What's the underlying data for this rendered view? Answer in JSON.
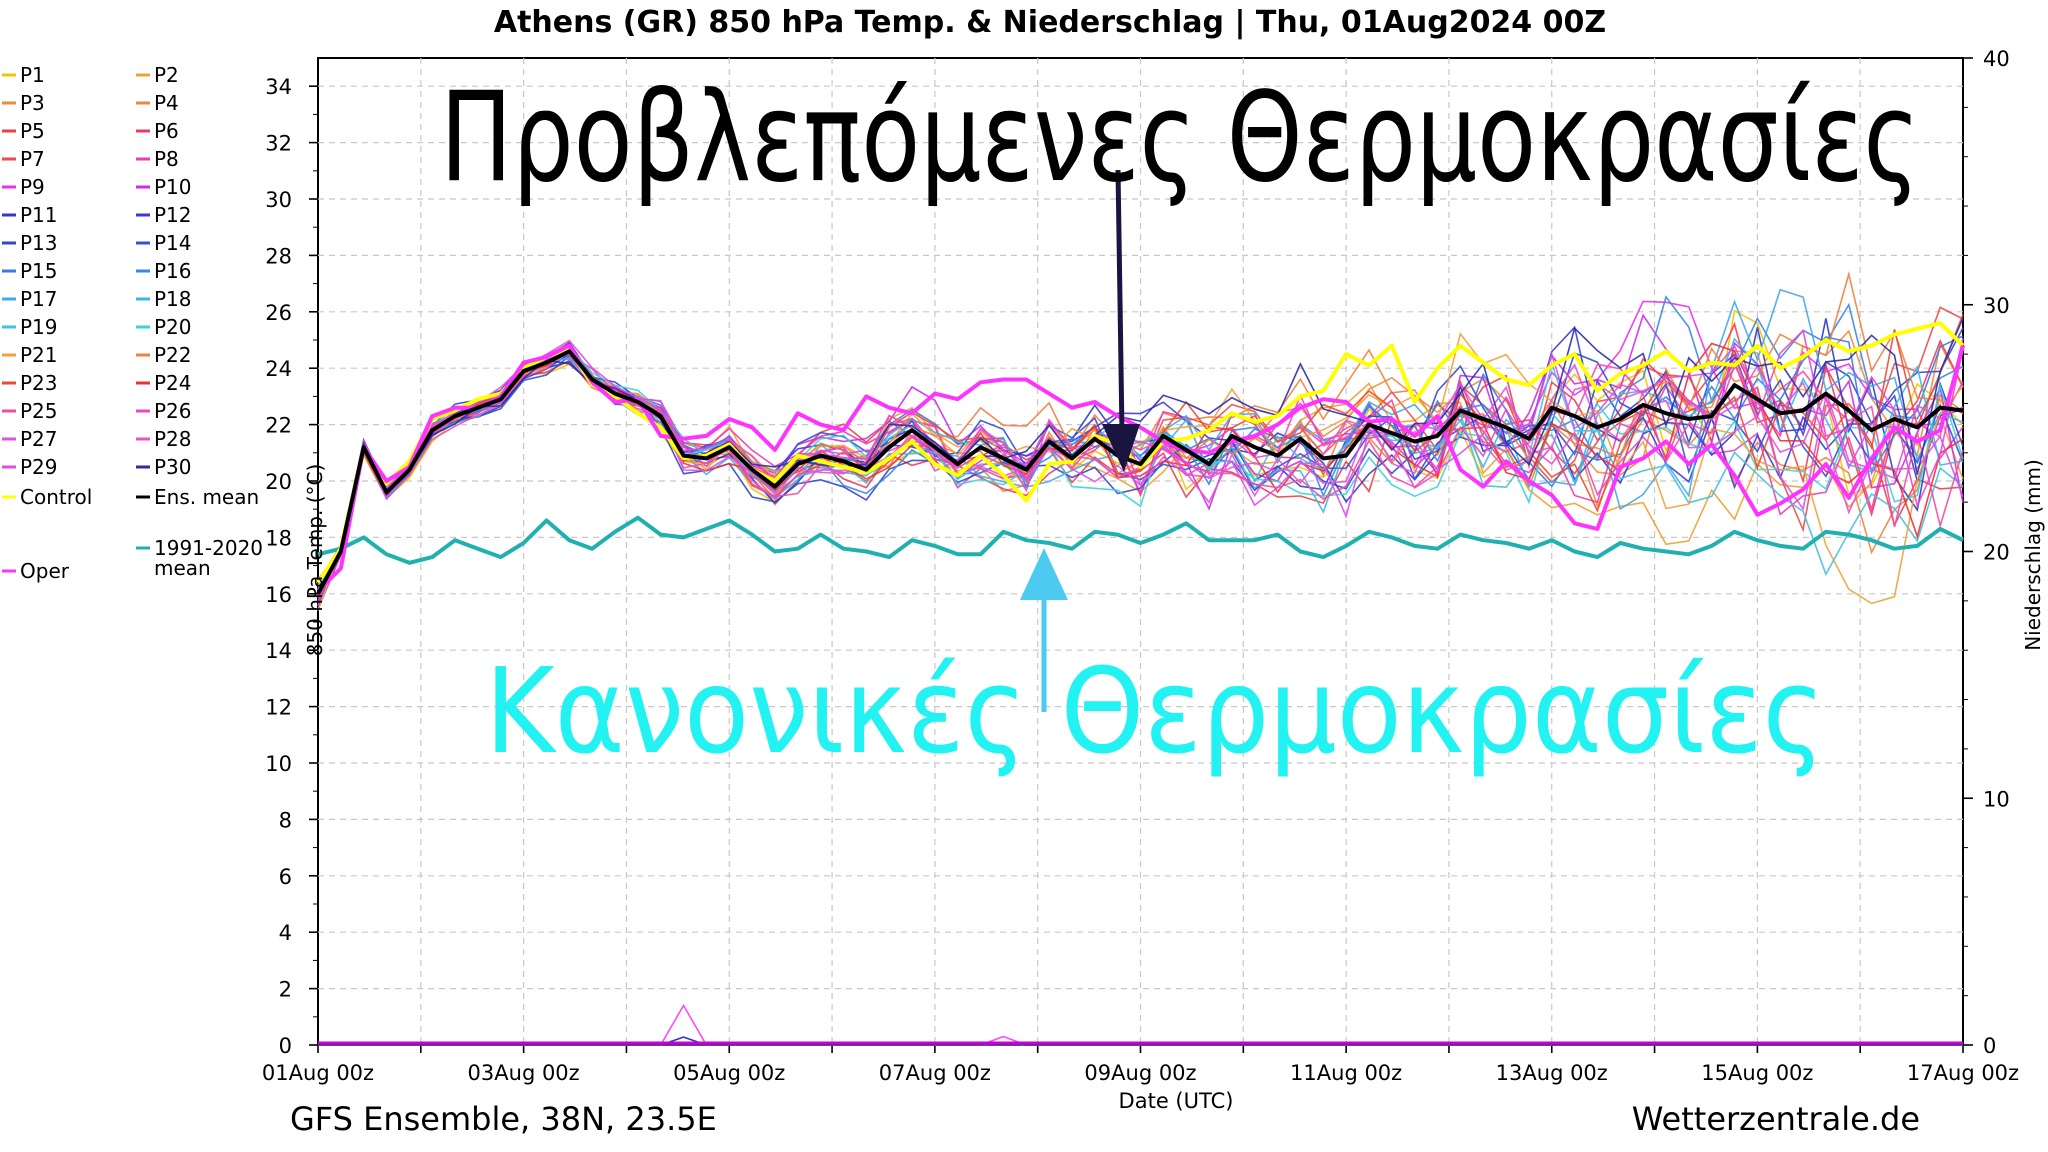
{
  "chart_data": {
    "type": "line",
    "title": "Athens  (GR)  850 hPa Temp. & Niederschlag | Thu, 01Aug2024 00Z",
    "xlabel": "Date (UTC)",
    "ylabel": "850 hPa Temp. (°C)",
    "y2label": "Niederschlag (mm)",
    "xticks": [
      "01Aug 00z",
      "03Aug 00z",
      "05Aug 00z",
      "07Aug 00z",
      "09Aug 00z",
      "11Aug 00z",
      "13Aug 00z",
      "15Aug 00z",
      "17Aug 00z"
    ],
    "x_start": "2024-08-01T00Z",
    "x_end": "2024-08-17T00Z",
    "x_step_hours": 6,
    "ylim": [
      0,
      35
    ],
    "yticks": [
      0,
      2,
      4,
      6,
      8,
      10,
      12,
      14,
      16,
      18,
      20,
      22,
      24,
      26,
      28,
      30,
      32,
      34
    ],
    "y2lim": [
      0,
      40
    ],
    "y2ticks": [
      0,
      10,
      20,
      30,
      40
    ],
    "grid": true,
    "legend_position": "left",
    "legend": [
      "P1",
      "P2",
      "P3",
      "P4",
      "P5",
      "P6",
      "P7",
      "P8",
      "P9",
      "P10",
      "P11",
      "P12",
      "P13",
      "P14",
      "P15",
      "P16",
      "P17",
      "P18",
      "P19",
      "P20",
      "P21",
      "P22",
      "P23",
      "P24",
      "P25",
      "P26",
      "P27",
      "P28",
      "P29",
      "P30",
      "Control",
      "Ens. mean",
      "1991-2020\nmean",
      "Oper"
    ],
    "member_colors": [
      "#f5c400",
      "#f0a030",
      "#f08a3c",
      "#f0843a",
      "#ee4040",
      "#ef3b5a",
      "#f04a4a",
      "#ee3cb0",
      "#ec30e6",
      "#d02ae8",
      "#3038c8",
      "#3a3adc",
      "#3348c8",
      "#3050d8",
      "#3a78e8",
      "#3a86e8",
      "#42a8e8",
      "#3fb4ea",
      "#42c0e0",
      "#3cd2dc",
      "#f0a23c",
      "#f08040",
      "#ee4a30",
      "#ef3030",
      "#f24aa6",
      "#ee44c8",
      "#e052e0",
      "#e852cc",
      "#e04ae8",
      "#2c2ca8"
    ],
    "control_color": "#ffff00",
    "mean_color": "#000000",
    "clim_color": "#20b0b0",
    "oper_color": "#ff33ff",
    "series": [
      {
        "name": "Ens. mean",
        "values": [
          16,
          17.5,
          21.2,
          19.6,
          20.4,
          21.8,
          22.3,
          22.6,
          22.9,
          23.9,
          24.2,
          24.6,
          23.6,
          23.1,
          22.8,
          22.3,
          20.9,
          20.8,
          21.2,
          20.4,
          19.8,
          20.6,
          20.9,
          20.7,
          20.4,
          21.2,
          21.8,
          21.2,
          20.6,
          21.2,
          20.8,
          20.4,
          21.4,
          20.8,
          21.5,
          20.9,
          20.6,
          21.6,
          21.1,
          20.6,
          21.6,
          21.2,
          20.9,
          21.5,
          20.8,
          20.9,
          22,
          21.7,
          21.4,
          21.6,
          22.5,
          22.2,
          21.9,
          21.5,
          22.6,
          22.3,
          21.9,
          22.2,
          22.7,
          22.4,
          22.2,
          22.3,
          23.4,
          22.9,
          22.4,
          22.5,
          23.1,
          22.5,
          21.8,
          22.2,
          21.9,
          22.6,
          22.5
        ]
      },
      {
        "name": "Control",
        "values": [
          16.4,
          17.6,
          21.2,
          19.9,
          20.7,
          22.2,
          22.5,
          22.9,
          23.1,
          24,
          24.4,
          24.7,
          23.4,
          23,
          22.4,
          21.9,
          20.8,
          20.9,
          21.3,
          20.4,
          20,
          20.9,
          20.7,
          20.5,
          20.3,
          20.8,
          21.4,
          20.6,
          20.2,
          20.9,
          20.2,
          19.3,
          20.6,
          20.7,
          21.6,
          21.3,
          20.5,
          21.4,
          21.5,
          21.8,
          22.4,
          22.1,
          22.3,
          23,
          23.2,
          24.5,
          24.1,
          24.8,
          22.8,
          24,
          24.8,
          24.2,
          23.6,
          23.4,
          24.1,
          24.5,
          23.2,
          23.8,
          24.1,
          24.6,
          23.9,
          24.2,
          24.1,
          24.8,
          24,
          24.4,
          25,
          24.6,
          24.8,
          25.2,
          25.4,
          25.6,
          24.8
        ]
      },
      {
        "name": "Oper",
        "values": [
          16.1,
          16.9,
          21.2,
          20,
          20.5,
          22.3,
          22.6,
          22.6,
          23,
          24.2,
          24.4,
          24.8,
          23.5,
          22.8,
          22.9,
          21.6,
          21.5,
          21.6,
          22.2,
          21.9,
          21.1,
          22.4,
          22,
          21.8,
          23,
          22.6,
          22.4,
          23.1,
          22.9,
          23.5,
          23.6,
          23.6,
          23.1,
          22.6,
          22.8,
          22.3,
          21.9,
          21.4,
          21.1,
          21,
          21.4,
          21.6,
          22,
          22.6,
          22.9,
          22.8,
          22.1,
          22.2,
          21.6,
          22.3,
          20.4,
          19.8,
          20.7,
          20,
          19.5,
          18.5,
          18.3,
          20.5,
          20.8,
          21.4,
          20.6,
          21.3,
          20.2,
          18.8,
          19.2,
          19.7,
          20.6,
          19.4,
          20.8,
          21.9,
          21.4,
          21.8,
          24.8
        ]
      },
      {
        "name": "1991-2020\nmean",
        "values": [
          17.4,
          17.6,
          18,
          17.4,
          17.1,
          17.3,
          17.9,
          17.6,
          17.3,
          17.8,
          18.6,
          17.9,
          17.6,
          18.2,
          18.7,
          18.1,
          18,
          18.3,
          18.6,
          18.1,
          17.5,
          17.6,
          18.1,
          17.6,
          17.5,
          17.3,
          17.9,
          17.7,
          17.4,
          17.4,
          18.2,
          17.9,
          17.8,
          17.6,
          18.2,
          18.1,
          17.8,
          18.1,
          18.5,
          17.9,
          17.9,
          17.9,
          18.1,
          17.5,
          17.3,
          17.7,
          18.2,
          18,
          17.7,
          17.6,
          18.1,
          17.9,
          17.8,
          17.6,
          17.9,
          17.5,
          17.3,
          17.8,
          17.6,
          17.5,
          17.4,
          17.7,
          18.2,
          17.9,
          17.7,
          17.6,
          18.2,
          18.1,
          17.9,
          17.6,
          17.7,
          18.3,
          17.9
        ]
      }
    ],
    "members_note": "",
    "precip_bumps": [
      {
        "x": "2024-08-05T00Z",
        "value": 1.4
      },
      {
        "x": "2024-08-08T12Z",
        "value": 0.3
      }
    ],
    "precip_spread": 4.2
  },
  "annotations": {
    "forecast_label": "Προβλεπόμενες Θερμοκρασίες",
    "normal_label": "Κανονικές Θερμοκρασίες",
    "forecast_color": "#000000",
    "normal_color": "#22f2f2",
    "forecast_arrow_color": "#1a1440",
    "normal_arrow_color": "#4ccaf0"
  },
  "footer": {
    "left": "GFS Ensemble, 38N, 23.5E",
    "right": "Wetterzentrale.de"
  }
}
